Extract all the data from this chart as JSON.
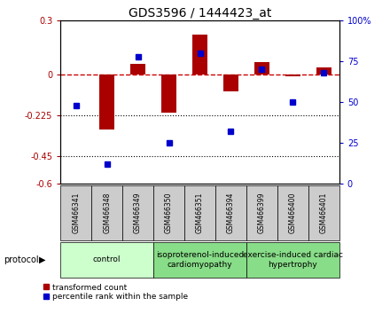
{
  "title": "GDS3596 / 1444423_at",
  "samples": [
    "GSM466341",
    "GSM466348",
    "GSM466349",
    "GSM466350",
    "GSM466351",
    "GSM466394",
    "GSM466399",
    "GSM466400",
    "GSM466401"
  ],
  "red_values": [
    0.0,
    -0.3,
    0.06,
    -0.21,
    0.22,
    -0.09,
    0.07,
    -0.01,
    0.04
  ],
  "blue_values": [
    48,
    12,
    78,
    25,
    80,
    32,
    70,
    50,
    68
  ],
  "ylim_left": [
    -0.6,
    0.3
  ],
  "ylim_right": [
    0,
    100
  ],
  "left_ticks": [
    0.3,
    0.0,
    -0.225,
    -0.45,
    -0.6
  ],
  "left_ticklabels": [
    "0.3",
    "0",
    "-0.225",
    "-0.45",
    "-0.6"
  ],
  "right_ticks": [
    100,
    75,
    50,
    25,
    0
  ],
  "right_ticklabels": [
    "100%",
    "75",
    "50",
    "25",
    "0"
  ],
  "red_color": "#aa0000",
  "blue_color": "#0000cc",
  "hline_color": "#cc0000",
  "dotted_line_color": "#000000",
  "bar_width": 0.5,
  "protocol_label": "protocol",
  "legend_red": "transformed count",
  "legend_blue": "percentile rank within the sample",
  "background_color": "#ffffff",
  "plot_bg_color": "#ffffff",
  "tick_label_fontsize": 7,
  "title_fontsize": 10,
  "group_bounds": [
    [
      0,
      3,
      "control",
      "#ccffcc"
    ],
    [
      3,
      6,
      "isoproterenol-induced\ncardiomyopathy",
      "#88dd88"
    ],
    [
      6,
      9,
      "exercise-induced cardiac\nhypertrophy",
      "#88dd88"
    ]
  ],
  "box_color": "#cccccc",
  "sample_fontsize": 5.5,
  "group_fontsize": 6.5
}
